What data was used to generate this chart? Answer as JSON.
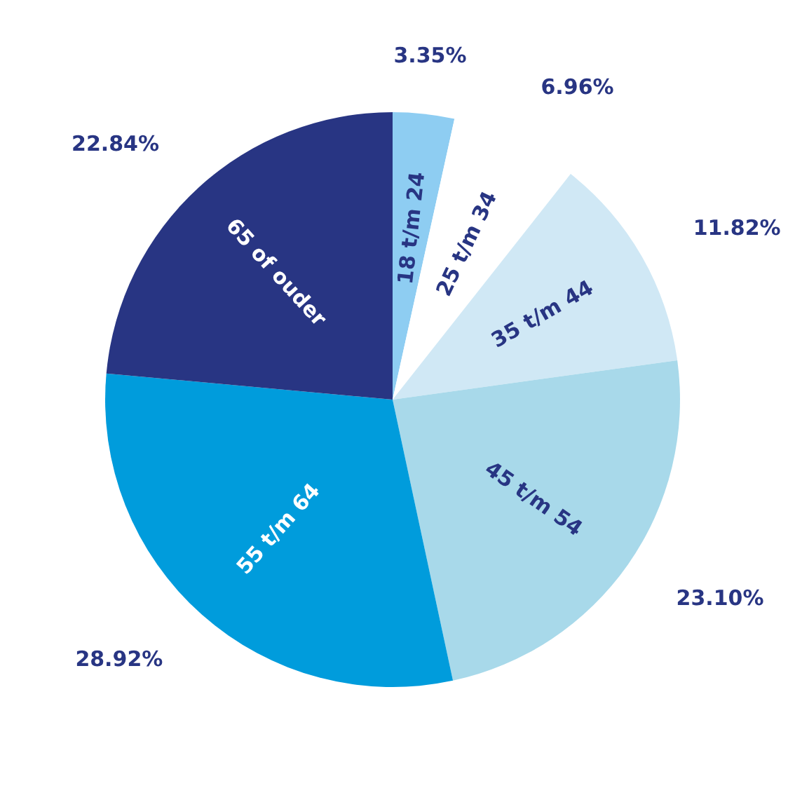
{
  "chart_data": {
    "type": "pie",
    "categories": [
      "18 t/m 24",
      "25 t/m 34",
      "35 t/m 44",
      "45 t/m 54",
      "55 t/m 64",
      "65 of ouder"
    ],
    "values": [
      3.35,
      6.96,
      11.82,
      23.1,
      28.92,
      22.84
    ],
    "value_labels": [
      "3.35%",
      "6.96%",
      "11.82%",
      "23.10%",
      "28.92%",
      "22.84%"
    ],
    "colors": [
      "#8ecdf2",
      "#ffffff",
      "#d0e8f5",
      "#a8d9ea",
      "#009cdc",
      "#283583"
    ],
    "legend": false
  }
}
